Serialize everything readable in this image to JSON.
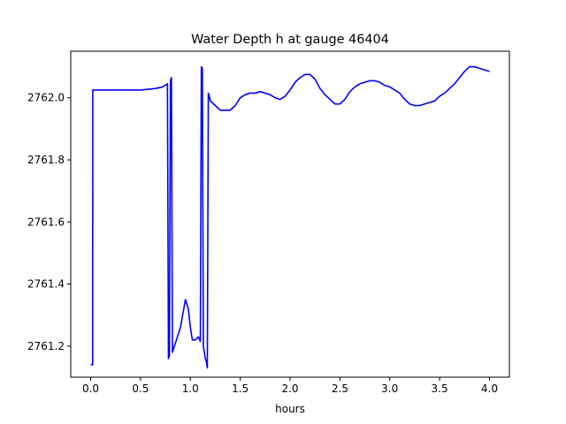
{
  "chart_data": {
    "type": "line",
    "title": "Water Depth h at gauge 46404",
    "xlabel": "hours",
    "ylabel": "",
    "xlim": [
      -0.2,
      4.2
    ],
    "ylim": [
      2761.1,
      2762.15
    ],
    "x_ticks": [
      0.0,
      0.5,
      1.0,
      1.5,
      2.0,
      2.5,
      3.0,
      3.5,
      4.0
    ],
    "x_tick_labels": [
      "0.0",
      "0.5",
      "1.0",
      "1.5",
      "2.0",
      "2.5",
      "3.0",
      "3.5",
      "4.0"
    ],
    "y_ticks": [
      2761.2,
      2761.4,
      2761.6,
      2761.8,
      2762.0
    ],
    "y_tick_labels": [
      "2761.2",
      "2761.4",
      "2761.6",
      "2761.8",
      "2762.0"
    ],
    "grid": false,
    "series": [
      {
        "color": "#0000ff",
        "x": [
          0.0,
          0.01,
          0.02,
          0.021,
          0.1,
          0.3,
          0.5,
          0.65,
          0.72,
          0.77,
          0.78,
          0.79,
          0.8,
          0.81,
          0.82,
          0.83,
          0.84,
          0.86,
          0.9,
          0.95,
          0.98,
          1.0,
          1.02,
          1.05,
          1.08,
          1.1,
          1.11,
          1.12,
          1.13,
          1.14,
          1.15,
          1.16,
          1.17,
          1.18,
          1.19,
          1.2,
          1.25,
          1.3,
          1.35,
          1.4,
          1.45,
          1.5,
          1.55,
          1.6,
          1.65,
          1.7,
          1.75,
          1.8,
          1.85,
          1.9,
          1.95,
          2.0,
          2.05,
          2.1,
          2.15,
          2.2,
          2.25,
          2.3,
          2.35,
          2.4,
          2.45,
          2.5,
          2.55,
          2.6,
          2.65,
          2.7,
          2.75,
          2.8,
          2.85,
          2.9,
          2.95,
          3.0,
          3.05,
          3.1,
          3.15,
          3.2,
          3.25,
          3.3,
          3.35,
          3.4,
          3.45,
          3.5,
          3.55,
          3.6,
          3.65,
          3.7,
          3.75,
          3.8,
          3.85,
          3.9,
          3.95,
          4.0
        ],
        "y": [
          2761.14,
          2761.14,
          2761.14,
          2762.025,
          2762.025,
          2762.025,
          2762.025,
          2762.03,
          2762.035,
          2762.045,
          2761.16,
          2761.17,
          2762.055,
          2762.065,
          2761.18,
          2761.19,
          2761.2,
          2761.22,
          2761.26,
          2761.35,
          2761.32,
          2761.26,
          2761.22,
          2761.22,
          2761.23,
          2761.215,
          2762.1,
          2762.095,
          2761.2,
          2761.18,
          2761.16,
          2761.15,
          2761.13,
          2762.015,
          2762.005,
          2761.99,
          2761.975,
          2761.96,
          2761.96,
          2761.96,
          2761.975,
          2762.0,
          2762.01,
          2762.015,
          2762.015,
          2762.02,
          2762.015,
          2762.01,
          2762.0,
          2761.995,
          2762.005,
          2762.025,
          2762.05,
          2762.065,
          2762.075,
          2762.075,
          2762.06,
          2762.03,
          2762.01,
          2761.995,
          2761.98,
          2761.98,
          2761.995,
          2762.02,
          2762.035,
          2762.045,
          2762.05,
          2762.055,
          2762.055,
          2762.05,
          2762.04,
          2762.035,
          2762.025,
          2762.015,
          2761.995,
          2761.98,
          2761.975,
          2761.975,
          2761.98,
          2761.985,
          2761.99,
          2762.005,
          2762.015,
          2762.03,
          2762.045,
          2762.065,
          2762.085,
          2762.1,
          2762.1,
          2762.095,
          2762.09,
          2762.085
        ]
      }
    ]
  }
}
